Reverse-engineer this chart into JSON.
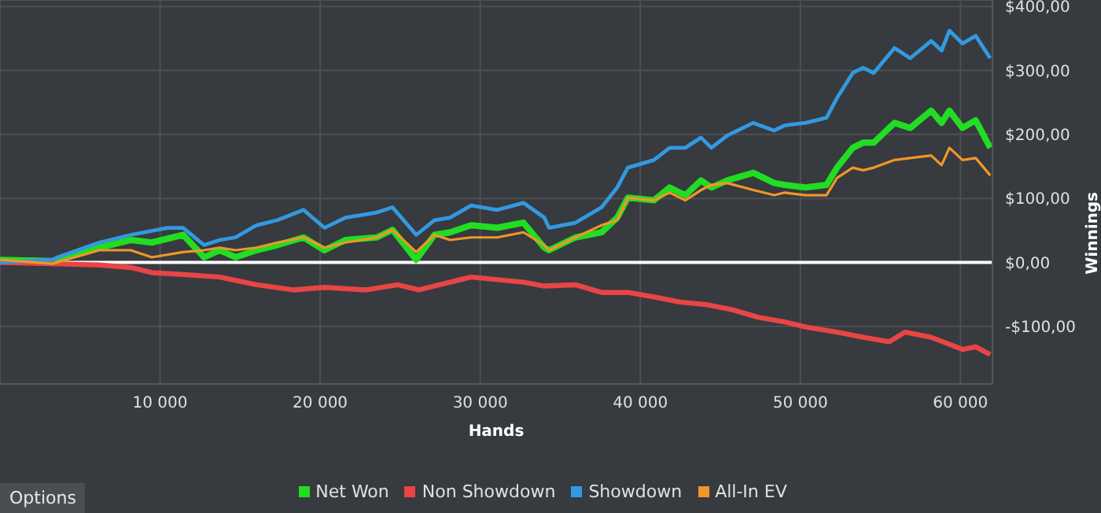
{
  "chart_data": {
    "type": "line",
    "xlabel": "Hands",
    "ylabel": "Winnings",
    "xlim": [
      0,
      62000
    ],
    "ylim": [
      -190,
      410
    ],
    "xticks": [
      {
        "value": 10000,
        "label": "10 000"
      },
      {
        "value": 20000,
        "label": "20 000"
      },
      {
        "value": 30000,
        "label": "30 000"
      },
      {
        "value": 40000,
        "label": "40 000"
      },
      {
        "value": 50000,
        "label": "50 000"
      },
      {
        "value": 60000,
        "label": "60 000"
      }
    ],
    "yticks": [
      {
        "value": -100,
        "label": "-$100,00"
      },
      {
        "value": 0,
        "label": "$0,00"
      },
      {
        "value": 100,
        "label": "$100,00"
      },
      {
        "value": 200,
        "label": "$200,00"
      },
      {
        "value": 300,
        "label": "$300,00"
      },
      {
        "value": 400,
        "label": "$400,00"
      }
    ],
    "grid": true,
    "legend": "bottom",
    "marker": "none",
    "line_style": "solid",
    "ref_lines": [
      {
        "axis": "y",
        "value": 0,
        "color": "#ffffff"
      }
    ],
    "annotations": [
      "Options"
    ],
    "series": [
      {
        "name": "Net Won",
        "color": "#22dd22",
        "x": [
          0,
          3270,
          6210,
          8170,
          9480,
          11440,
          12750,
          13730,
          14710,
          16020,
          17330,
          18960,
          20270,
          21580,
          23540,
          24520,
          26000,
          27140,
          28120,
          29430,
          31060,
          32700,
          34000,
          34300,
          35950,
          37580,
          38560,
          39220,
          40850,
          41830,
          42810,
          43790,
          44440,
          45420,
          47060,
          48370,
          49020,
          50330,
          51630,
          52290,
          53270,
          53920,
          54580,
          55880,
          56860,
          58170,
          58820,
          59310,
          60130,
          60950,
          61860
        ],
        "values": [
          4,
          2,
          23,
          35,
          31,
          43,
          8,
          19,
          8,
          19,
          27,
          39,
          19,
          35,
          39,
          51,
          4,
          43,
          47,
          58,
          54,
          62,
          23,
          19,
          39,
          47,
          70,
          101,
          97,
          117,
          105,
          128,
          117,
          128,
          140,
          124,
          121,
          117,
          121,
          148,
          179,
          187,
          187,
          218,
          210,
          237,
          218,
          237,
          210,
          222,
          179
        ]
      },
      {
        "name": "Non Showdown",
        "color": "#e84545",
        "x": [
          0,
          3270,
          6210,
          8170,
          8830,
          9480,
          11440,
          13730,
          16020,
          18310,
          20270,
          22890,
          24850,
          26160,
          28120,
          29430,
          31060,
          32700,
          34000,
          35950,
          37580,
          39220,
          40850,
          42480,
          44120,
          45750,
          47390,
          49020,
          50330,
          52290,
          53920,
          55560,
          56540,
          58170,
          60130,
          60950,
          61860
        ],
        "values": [
          0,
          -2,
          -4,
          -8,
          -12,
          -16,
          -19,
          -23,
          -35,
          -43,
          -39,
          -43,
          -35,
          -43,
          -31,
          -23,
          -27,
          -31,
          -37,
          -35,
          -47,
          -47,
          -54,
          -62,
          -66,
          -74,
          -86,
          -93,
          -101,
          -109,
          -117,
          -124,
          -109,
          -117,
          -136,
          -132,
          -144
        ]
      },
      {
        "name": "Showdown",
        "color": "#3399e0",
        "x": [
          0,
          3270,
          3600,
          6210,
          8170,
          10460,
          11440,
          12750,
          13730,
          14710,
          16020,
          17330,
          18960,
          20270,
          21580,
          23540,
          24520,
          26000,
          27140,
          28120,
          29430,
          31060,
          32700,
          34000,
          34300,
          35950,
          37580,
          38560,
          39220,
          40850,
          41830,
          42810,
          43790,
          44440,
          45420,
          47060,
          48370,
          49020,
          50330,
          51630,
          52290,
          53270,
          53920,
          54580,
          55880,
          56860,
          58170,
          58820,
          59310,
          60130,
          60950,
          61860
        ],
        "values": [
          0,
          4,
          8,
          31,
          43,
          54,
          54,
          27,
          35,
          39,
          58,
          66,
          82,
          54,
          70,
          78,
          86,
          43,
          66,
          70,
          89,
          82,
          93,
          70,
          54,
          62,
          86,
          117,
          148,
          160,
          179,
          179,
          195,
          179,
          198,
          218,
          206,
          214,
          218,
          226,
          257,
          296,
          304,
          296,
          335,
          319,
          346,
          331,
          362,
          342,
          354,
          319
        ]
      },
      {
        "name": "All-In EV",
        "color": "#f0962a",
        "x": [
          0,
          3270,
          6210,
          8170,
          9480,
          11440,
          12750,
          13730,
          14710,
          16020,
          17330,
          18960,
          20270,
          21580,
          23540,
          24520,
          26000,
          27140,
          28120,
          29430,
          31060,
          32700,
          34000,
          34300,
          35950,
          37580,
          38560,
          39220,
          40850,
          41830,
          42810,
          43790,
          44440,
          45420,
          47060,
          48370,
          49020,
          50330,
          51630,
          52290,
          53270,
          53920,
          54580,
          55880,
          56860,
          58170,
          58820,
          59310,
          60130,
          60950,
          61860
        ],
        "values": [
          4,
          -2,
          19,
          19,
          8,
          16,
          19,
          23,
          19,
          23,
          31,
          39,
          23,
          31,
          39,
          51,
          16,
          43,
          35,
          39,
          39,
          47,
          27,
          19,
          39,
          58,
          66,
          101,
          97,
          109,
          97,
          113,
          121,
          124,
          113,
          105,
          109,
          105,
          105,
          132,
          148,
          144,
          148,
          160,
          163,
          167,
          152,
          179,
          160,
          163,
          136
        ]
      }
    ]
  }
}
